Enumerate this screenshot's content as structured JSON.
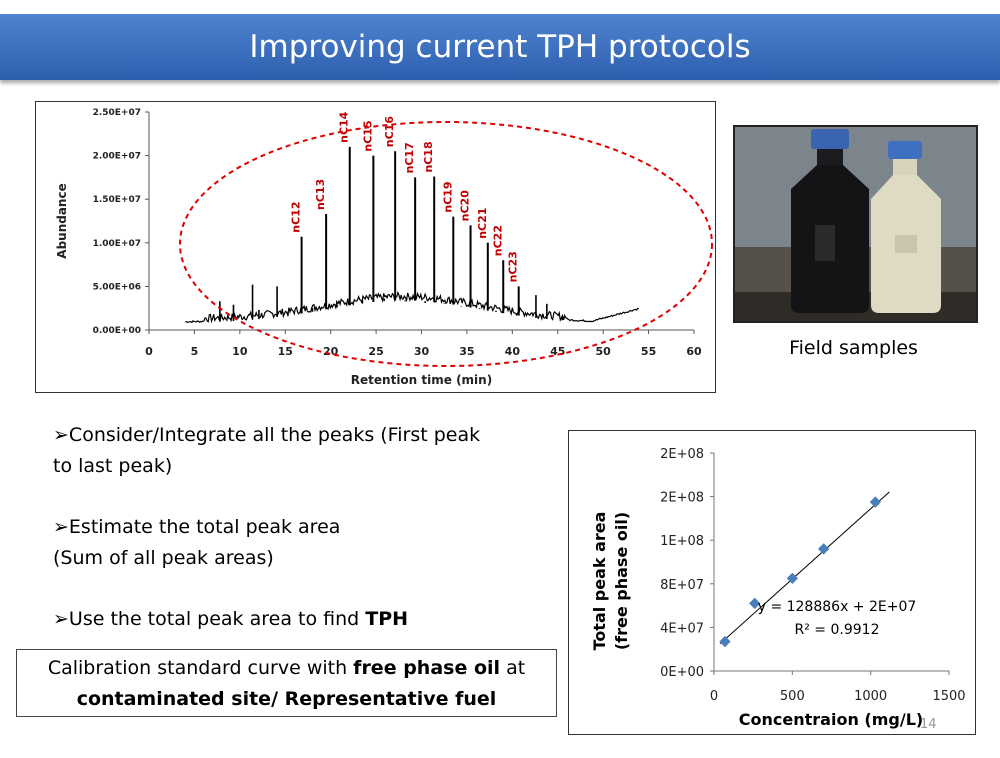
{
  "header": {
    "title": "Improving current TPH protocols"
  },
  "chromatogram": {
    "chart_data": {
      "type": "line",
      "xlabel": "Retention time (min)",
      "ylabel": "Abundance",
      "xlim": [
        0,
        60
      ],
      "ylim": [
        0,
        25000000
      ],
      "x_ticks": [
        "0",
        "5",
        "10",
        "15",
        "20",
        "25",
        "30",
        "35",
        "40",
        "45",
        "50",
        "55",
        "60"
      ],
      "y_ticks": [
        "0.00E+00",
        "5.00E+06",
        "1.00E+07",
        "1.50E+07",
        "2.00E+07",
        "2.50E+07"
      ],
      "peaks": [
        {
          "name": "nC12",
          "x": 16.8,
          "y": 10700000
        },
        {
          "name": "nC13",
          "x": 19.5,
          "y": 13300000
        },
        {
          "name": "nC14",
          "x": 22.1,
          "y": 21000000
        },
        {
          "name": "nC15",
          "x": 24.7,
          "y": 20000000
        },
        {
          "name": "nC16",
          "x": 27.1,
          "y": 20500000
        },
        {
          "name": "nC17",
          "x": 29.3,
          "y": 17500000
        },
        {
          "name": "nC18",
          "x": 31.4,
          "y": 17600000
        },
        {
          "name": "nC19",
          "x": 33.5,
          "y": 13000000
        },
        {
          "name": "nC20",
          "x": 35.4,
          "y": 12000000
        },
        {
          "name": "nC21",
          "x": 37.3,
          "y": 10000000
        },
        {
          "name": "nC22",
          "x": 39.0,
          "y": 8000000
        },
        {
          "name": "nC23",
          "x": 40.7,
          "y": 5000000
        }
      ]
    }
  },
  "photo": {
    "caption": "Field samples"
  },
  "bullets": {
    "b1": "Consider/Integrate all the peaks (First peak to  last peak)",
    "b2a": "Estimate the total peak area",
    "b2b": "(Sum of all peak  areas)",
    "b3_prefix": "Use the total peak area to find ",
    "b3_bold": "TPH"
  },
  "calibration_note": {
    "prefix": "Calibration standard curve with ",
    "bold1": "free phase oil",
    "mid": " at",
    "bold2": "contaminated site/ Representative fuel"
  },
  "calibration": {
    "chart_data": {
      "type": "scatter",
      "xlabel": "Concentraion (mg/L)",
      "ylabel": "Total peak area (free phase oil)",
      "xlim": [
        0,
        1500
      ],
      "ylim": [
        0,
        200000000
      ],
      "x_ticks": [
        "0",
        "500",
        "1000",
        "1500"
      ],
      "y_ticks": [
        "0E+00",
        "4E+07",
        "8E+07",
        "1E+08",
        "2E+08",
        "2E+08"
      ],
      "series": [
        {
          "x": [
            70,
            260,
            500,
            700,
            1030
          ],
          "y": [
            27000000,
            62000000,
            85000000,
            112000000,
            155000000
          ]
        }
      ],
      "trendline": {
        "slope": 128886,
        "intercept": 20000000
      },
      "equation": "y = 128886x + 2E+07",
      "r2": "R² = 0.9912"
    }
  },
  "page": {
    "number": "14"
  },
  "colors": {
    "title_bar": "#3a6fbf",
    "peak_label": "#c00000",
    "ellipse": "#e00000",
    "marker": "#4a7ebb"
  }
}
